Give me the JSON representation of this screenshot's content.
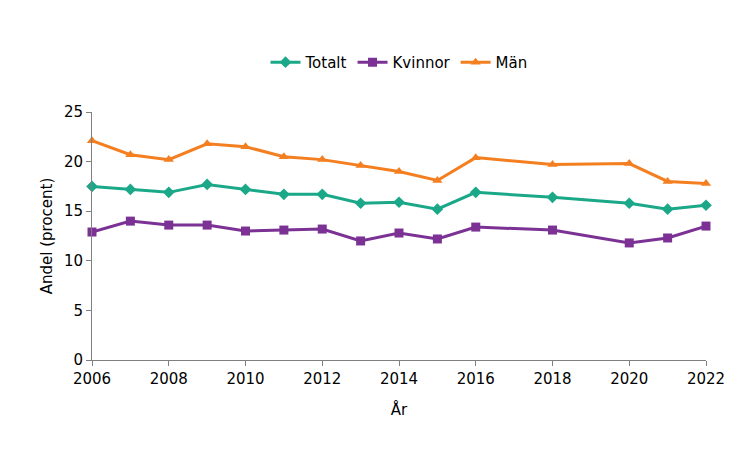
{
  "chart_data": {
    "type": "line",
    "x_label": "År",
    "y_label": "Andel (procent)",
    "x": [
      2006,
      2007,
      2008,
      2009,
      2010,
      2011,
      2012,
      2013,
      2014,
      2015,
      2016,
      2018,
      2020,
      2021,
      2022
    ],
    "series": [
      {
        "name": "Totalt",
        "color": "#1aa889",
        "marker": "diamond",
        "values": [
          17.5,
          17.2,
          16.9,
          17.7,
          17.2,
          16.7,
          16.7,
          15.8,
          15.9,
          15.2,
          16.9,
          16.4,
          15.8,
          15.2,
          15.6
        ]
      },
      {
        "name": "Kvinnor",
        "color": "#7b3294",
        "marker": "square",
        "values": [
          12.9,
          14.0,
          13.6,
          13.6,
          13.0,
          13.1,
          13.2,
          12.0,
          12.8,
          12.2,
          13.4,
          13.1,
          11.8,
          12.3,
          13.5
        ]
      },
      {
        "name": "Män",
        "color": "#f47f20",
        "marker": "triangle-up",
        "values": [
          22.1,
          20.7,
          20.2,
          21.8,
          21.5,
          20.5,
          20.2,
          19.6,
          19.0,
          18.1,
          20.4,
          19.7,
          19.8,
          18.0,
          17.8
        ]
      }
    ],
    "xlim": [
      2006,
      2022
    ],
    "xticks": [
      2006,
      2008,
      2010,
      2012,
      2014,
      2016,
      2018,
      2020,
      2022
    ],
    "ylim": [
      0,
      25
    ],
    "yticks": [
      0,
      5,
      10,
      15,
      20,
      25
    ],
    "grid": false,
    "legend": "top"
  }
}
